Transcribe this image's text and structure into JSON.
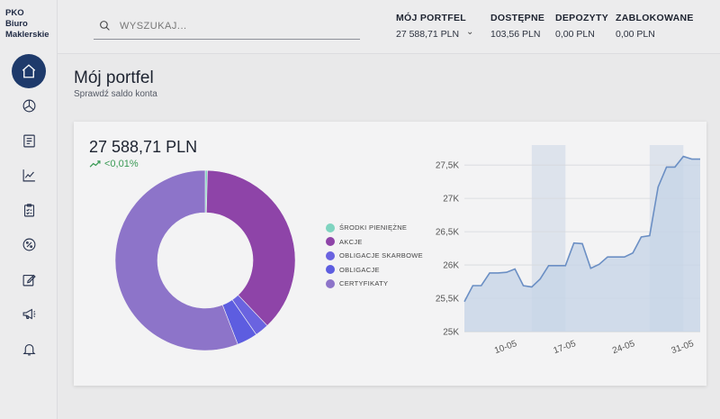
{
  "brand": {
    "line1": "PKO",
    "line2": "Biuro",
    "line3": "Maklerskie"
  },
  "sidebar": {
    "items": [
      {
        "icon": "home-icon",
        "active": true
      },
      {
        "icon": "pie-chart-icon"
      },
      {
        "icon": "document-list-icon"
      },
      {
        "icon": "trend-chart-icon"
      },
      {
        "icon": "clipboard-icon"
      },
      {
        "icon": "percent-icon"
      },
      {
        "icon": "edit-icon"
      },
      {
        "icon": "megaphone-icon"
      },
      {
        "icon": "bell-icon"
      }
    ]
  },
  "search": {
    "placeholder": "WYSZUKAJ..."
  },
  "header_stats": {
    "portfolio": {
      "label": "MÓJ PORTFEL",
      "value": "27 588,71 PLN"
    },
    "available": {
      "label": "DOSTĘPNE",
      "value": "103,56 PLN"
    },
    "deposits": {
      "label": "DEPOZYTY",
      "value": "0,00 PLN"
    },
    "blocked": {
      "label": "ZABLOKOWANE",
      "value": "0,00 PLN"
    },
    "chevron": "⌄"
  },
  "page": {
    "title": "Mój portfel",
    "subtitle": "Sprawdź saldo konta"
  },
  "summary": {
    "total": "27 588,71 PLN",
    "change": "<0,01%",
    "change_color": "#3a9a55"
  },
  "legend": [
    {
      "label": "ŚRODKI PIENIĘŻNE",
      "color": "#7fd4c0"
    },
    {
      "label": "AKCJE",
      "color": "#8e44a8"
    },
    {
      "label": "OBLIGACJE SKARBOWE",
      "color": "#6a63e0"
    },
    {
      "label": "OBLIGACJE",
      "color": "#5d5de0"
    },
    {
      "label": "CERTYFIKATY",
      "color": "#8d74c9"
    }
  ],
  "chart_data": [
    {
      "type": "pie",
      "categories": [
        "ŚRODKI PIENIĘŻNE",
        "AKCJE",
        "OBLIGACJE SKARBOWE",
        "OBLIGACJE",
        "CERTYFIKATY"
      ],
      "values": [
        0.4,
        37.5,
        2.5,
        3.7,
        55.9
      ],
      "colors": [
        "#7fd4c0",
        "#8e44a8",
        "#6a63e0",
        "#5d5de0",
        "#8d74c9"
      ]
    },
    {
      "type": "area",
      "x": [
        "2021-05-05",
        "2021-05-06",
        "2021-05-07",
        "2021-05-08",
        "2021-05-09",
        "2021-05-10",
        "2021-05-11",
        "2021-05-12",
        "2021-05-13",
        "2021-05-14",
        "2021-05-15",
        "2021-05-16",
        "2021-05-17",
        "2021-05-18",
        "2021-05-19",
        "2021-05-20",
        "2021-05-21",
        "2021-05-22",
        "2021-05-23",
        "2021-05-24",
        "2021-05-25",
        "2021-05-26",
        "2021-05-27",
        "2021-05-28",
        "2021-05-29",
        "2021-05-30",
        "2021-05-31",
        "2021-06-01",
        "2021-06-02"
      ],
      "values": [
        25450,
        25690,
        25690,
        25880,
        25880,
        25890,
        25940,
        25690,
        25670,
        25790,
        25990,
        25990,
        25990,
        26330,
        26320,
        25950,
        26010,
        26120,
        26120,
        26120,
        26180,
        26420,
        26440,
        27170,
        27470,
        27470,
        27630,
        27590,
        27590
      ],
      "ylim": [
        25000,
        27800
      ],
      "yticks": [
        "25K",
        "25,5K",
        "26K",
        "26,5K",
        "27K",
        "27,5K"
      ],
      "xticks": [
        "10-05",
        "17-05",
        "24-05",
        "31-05"
      ],
      "shaded_bands": [
        [
          "2021-05-13",
          "2021-05-17"
        ],
        [
          "2021-05-27",
          "2021-05-31"
        ]
      ],
      "line_color": "#6b8fc4",
      "fill_color": "#c7d4e7"
    }
  ]
}
